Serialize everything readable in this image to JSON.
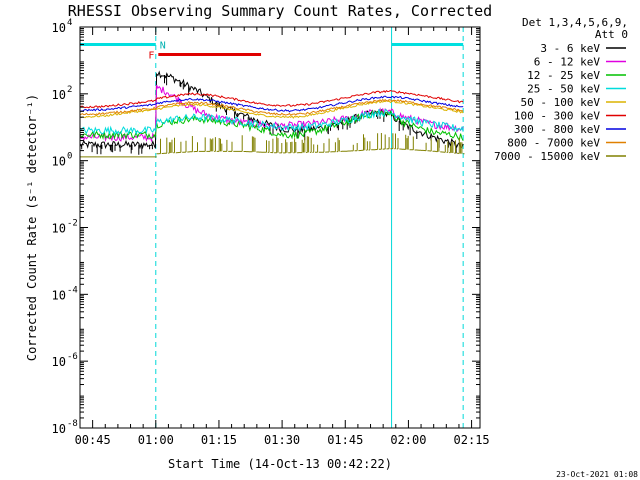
{
  "chart_data": {
    "type": "line",
    "title": "RHESSI Observing Summary Count Rates, Corrected",
    "xlabel": "Start Time (14-Oct-13 00:42:22)",
    "ylabel": "Corrected Count Rate (s⁻¹ detector⁻¹)",
    "y_scale": "log",
    "ylim": [
      1e-08,
      10000.0
    ],
    "xlim": [
      0,
      95
    ],
    "x_tick_minutes": [
      3,
      18,
      33,
      48,
      63,
      78,
      93
    ],
    "x_tick_labels": [
      "00:45",
      "01:00",
      "01:15",
      "01:30",
      "01:45",
      "02:00",
      "02:15"
    ],
    "y_tick_exponents": [
      -8,
      -6,
      -4,
      -2,
      0,
      2,
      4
    ],
    "y_tick_mantissa": "10",
    "grid": false,
    "legend_header": [
      "Det 1,3,4,5,6,9,",
      "Att 0"
    ],
    "legend_position": "right",
    "date_stamp": "23-Oct-2021 01:08",
    "annotations": {
      "night_label": "N",
      "flare_label": "F",
      "night_bars_y": 3000,
      "flare_bar_y": 1500,
      "night_intervals": [
        [
          0,
          18
        ],
        [
          74,
          91
        ]
      ],
      "flare_interval": [
        18.6,
        43
      ],
      "dashed_lines_x": [
        18,
        91
      ],
      "solid_lines_x": [
        0,
        74
      ]
    },
    "series": [
      {
        "name": "3 - 6 keV",
        "color": "#000000",
        "kind": "lo",
        "points": [
          [
            0,
            3
          ],
          [
            17.9,
            3
          ],
          [
            18,
            450
          ],
          [
            22,
            300
          ],
          [
            28,
            120
          ],
          [
            33,
            45
          ],
          [
            38,
            25
          ],
          [
            43,
            14
          ],
          [
            48,
            9
          ],
          [
            53,
            8
          ],
          [
            58,
            10
          ],
          [
            63,
            15
          ],
          [
            67,
            22
          ],
          [
            71,
            28
          ],
          [
            74,
            22
          ],
          [
            77,
            12
          ],
          [
            80,
            8
          ],
          [
            84,
            5
          ],
          [
            88,
            3.5
          ],
          [
            91,
            2.5
          ]
        ]
      },
      {
        "name": "6 - 12 keV",
        "color": "#e000e0",
        "kind": "lo",
        "points": [
          [
            0,
            5
          ],
          [
            17.9,
            5
          ],
          [
            18,
            160
          ],
          [
            21,
            110
          ],
          [
            24,
            60
          ],
          [
            28,
            30
          ],
          [
            32,
            20
          ],
          [
            38,
            14
          ],
          [
            43,
            12
          ],
          [
            48,
            11
          ],
          [
            53,
            12
          ],
          [
            58,
            14
          ],
          [
            63,
            18
          ],
          [
            67,
            24
          ],
          [
            71,
            30
          ],
          [
            74,
            28
          ],
          [
            77,
            20
          ],
          [
            80,
            16
          ],
          [
            84,
            12
          ],
          [
            88,
            10
          ],
          [
            91,
            9
          ]
        ]
      },
      {
        "name": "12 - 25 keV",
        "color": "#00c000",
        "kind": "lo",
        "points": [
          [
            0,
            6
          ],
          [
            17.9,
            6
          ],
          [
            18,
            12
          ],
          [
            23,
            16
          ],
          [
            28,
            18
          ],
          [
            33,
            15
          ],
          [
            38,
            12
          ],
          [
            43,
            9
          ],
          [
            48,
            6
          ],
          [
            53,
            6
          ],
          [
            58,
            9
          ],
          [
            63,
            14
          ],
          [
            67,
            21
          ],
          [
            71,
            28
          ],
          [
            74,
            24
          ],
          [
            77,
            14
          ],
          [
            80,
            10
          ],
          [
            84,
            7
          ],
          [
            88,
            6
          ],
          [
            91,
            5
          ]
        ]
      },
      {
        "name": "25 - 50 keV",
        "color": "#00dcdc",
        "kind": "lo",
        "points": [
          [
            0,
            8
          ],
          [
            17.9,
            8
          ],
          [
            18,
            14
          ],
          [
            23,
            18
          ],
          [
            28,
            20
          ],
          [
            33,
            18
          ],
          [
            38,
            15
          ],
          [
            43,
            12
          ],
          [
            48,
            10
          ],
          [
            53,
            10
          ],
          [
            58,
            12
          ],
          [
            63,
            16
          ],
          [
            67,
            22
          ],
          [
            71,
            28
          ],
          [
            74,
            26
          ],
          [
            77,
            20
          ],
          [
            80,
            15
          ],
          [
            84,
            12
          ],
          [
            88,
            10
          ],
          [
            91,
            9
          ]
        ]
      },
      {
        "name": "50 - 100 keV",
        "color": "#dcb400",
        "kind": "hi",
        "points": [
          [
            0,
            20
          ],
          [
            6,
            22
          ],
          [
            10,
            26
          ],
          [
            14,
            30
          ],
          [
            17.9,
            33
          ],
          [
            18,
            35
          ],
          [
            22,
            42
          ],
          [
            26,
            48
          ],
          [
            30,
            45
          ],
          [
            34,
            38
          ],
          [
            38,
            30
          ],
          [
            42,
            24
          ],
          [
            46,
            21
          ],
          [
            50,
            20
          ],
          [
            54,
            22
          ],
          [
            58,
            28
          ],
          [
            62,
            36
          ],
          [
            66,
            46
          ],
          [
            70,
            56
          ],
          [
            73,
            60
          ],
          [
            76,
            56
          ],
          [
            80,
            46
          ],
          [
            84,
            38
          ],
          [
            88,
            32
          ],
          [
            91,
            28
          ]
        ]
      },
      {
        "name": "100 - 300 keV",
        "color": "#e00000",
        "kind": "hi",
        "points": [
          [
            0,
            40
          ],
          [
            6,
            42
          ],
          [
            10,
            48
          ],
          [
            14,
            55
          ],
          [
            17.9,
            62
          ],
          [
            18,
            70
          ],
          [
            22,
            85
          ],
          [
            26,
            100
          ],
          [
            30,
            95
          ],
          [
            34,
            80
          ],
          [
            38,
            65
          ],
          [
            42,
            52
          ],
          [
            46,
            46
          ],
          [
            50,
            44
          ],
          [
            54,
            48
          ],
          [
            58,
            58
          ],
          [
            62,
            72
          ],
          [
            66,
            90
          ],
          [
            70,
            110
          ],
          [
            73,
            120
          ],
          [
            76,
            112
          ],
          [
            80,
            95
          ],
          [
            84,
            78
          ],
          [
            88,
            64
          ],
          [
            91,
            56
          ]
        ]
      },
      {
        "name": "300 - 800 keV",
        "color": "#0000e0",
        "kind": "hi",
        "points": [
          [
            0,
            32
          ],
          [
            6,
            34
          ],
          [
            10,
            38
          ],
          [
            14,
            43
          ],
          [
            17.9,
            48
          ],
          [
            18,
            52
          ],
          [
            22,
            62
          ],
          [
            26,
            70
          ],
          [
            30,
            66
          ],
          [
            34,
            56
          ],
          [
            38,
            46
          ],
          [
            42,
            38
          ],
          [
            46,
            33
          ],
          [
            50,
            31
          ],
          [
            54,
            34
          ],
          [
            58,
            41
          ],
          [
            62,
            52
          ],
          [
            66,
            64
          ],
          [
            70,
            76
          ],
          [
            73,
            82
          ],
          [
            76,
            78
          ],
          [
            80,
            66
          ],
          [
            84,
            54
          ],
          [
            88,
            45
          ],
          [
            91,
            40
          ]
        ]
      },
      {
        "name": "800 - 7000 keV",
        "color": "#e08000",
        "kind": "hi",
        "points": [
          [
            0,
            24
          ],
          [
            6,
            26
          ],
          [
            10,
            29
          ],
          [
            14,
            33
          ],
          [
            17.9,
            37
          ],
          [
            18,
            40
          ],
          [
            22,
            48
          ],
          [
            26,
            55
          ],
          [
            30,
            52
          ],
          [
            34,
            44
          ],
          [
            38,
            36
          ],
          [
            42,
            29
          ],
          [
            46,
            25
          ],
          [
            50,
            24
          ],
          [
            54,
            26
          ],
          [
            58,
            32
          ],
          [
            62,
            40
          ],
          [
            66,
            50
          ],
          [
            70,
            60
          ],
          [
            73,
            65
          ],
          [
            76,
            62
          ],
          [
            80,
            52
          ],
          [
            84,
            43
          ],
          [
            88,
            36
          ],
          [
            91,
            31
          ]
        ]
      },
      {
        "name": "7000 - 15000 keV",
        "color": "#808000",
        "kind": "spike",
        "points": [
          [
            0,
            1.3
          ],
          [
            17.9,
            1.3
          ],
          [
            18,
            1.6
          ],
          [
            28,
            1.9
          ],
          [
            38,
            1.9
          ],
          [
            48,
            1.7
          ],
          [
            58,
            1.8
          ],
          [
            66,
            2.0
          ],
          [
            74,
            2.3
          ],
          [
            82,
            2.0
          ],
          [
            91,
            1.6
          ]
        ]
      }
    ]
  }
}
